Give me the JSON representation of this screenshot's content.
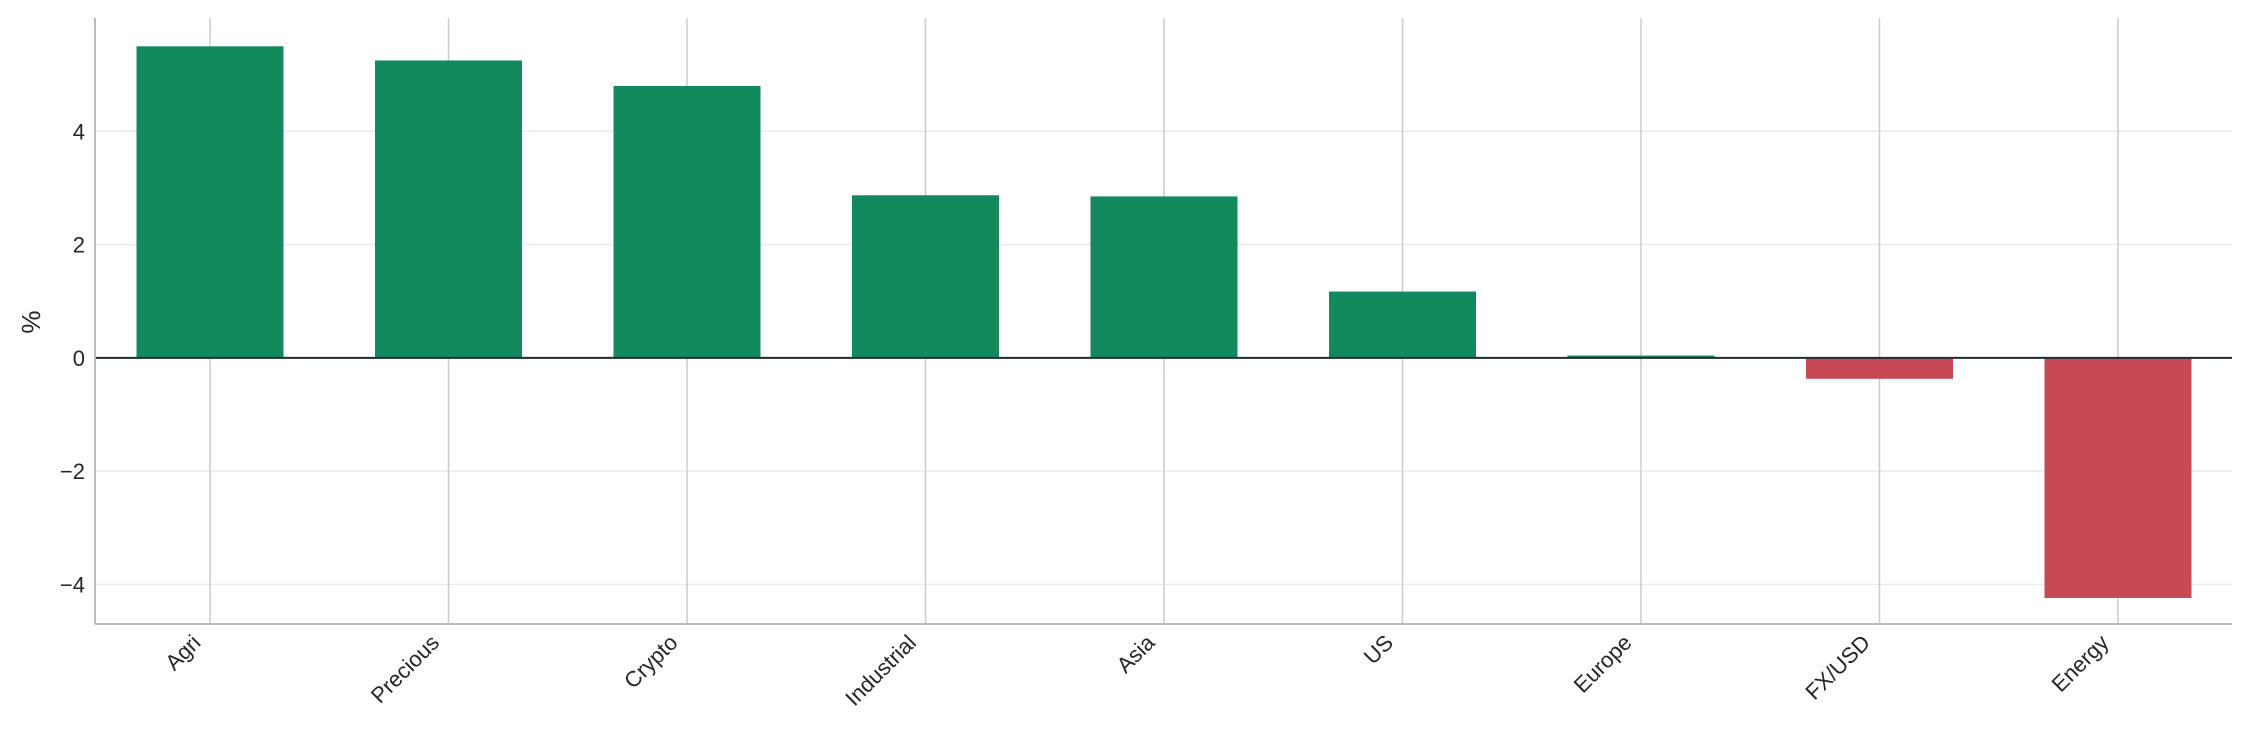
{
  "chart_data": {
    "type": "bar",
    "title": "",
    "xlabel": "",
    "ylabel": "%",
    "categories": [
      "Agri",
      "Precious",
      "Crypto",
      "Industrial",
      "Asia",
      "US",
      "Europe",
      "FX/USD",
      "Energy"
    ],
    "values": [
      5.5,
      5.25,
      4.8,
      2.87,
      2.85,
      1.17,
      0.04,
      -0.37,
      -4.24
    ],
    "ylim": [
      -4.7,
      6.0
    ],
    "yticks": [
      -4,
      -2,
      0,
      2,
      4
    ],
    "ytick_labels": [
      "−4",
      "−2",
      "0",
      "2",
      "4"
    ],
    "grid": {
      "x": true,
      "y": true
    },
    "colors": {
      "positive": "#138a5e",
      "negative": "#c84853",
      "zero_line": "#1c2b3a",
      "vgrid": "#cccccc",
      "hgrid": "#ebebeb",
      "spine": "#bbbbbb"
    }
  }
}
